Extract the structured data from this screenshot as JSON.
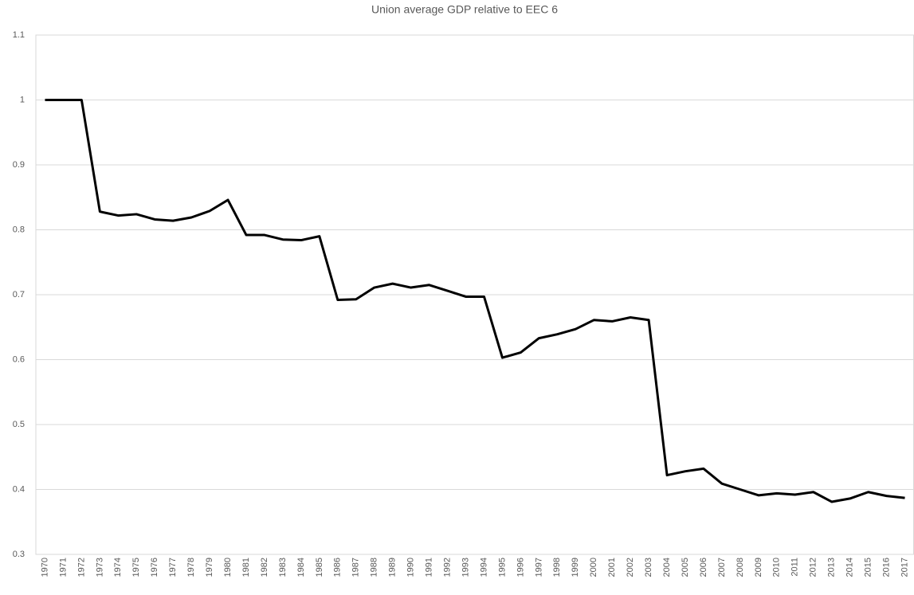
{
  "chart_data": {
    "type": "line",
    "title": "Union average GDP relative to EEC 6",
    "categories": [
      "1970",
      "1971",
      "1972",
      "1973",
      "1974",
      "1975",
      "1976",
      "1977",
      "1978",
      "1979",
      "1980",
      "1981",
      "1982",
      "1983",
      "1984",
      "1985",
      "1986",
      "1987",
      "1988",
      "1989",
      "1990",
      "1991",
      "1992",
      "1993",
      "1994",
      "1995",
      "1996",
      "1997",
      "1998",
      "1999",
      "2000",
      "2001",
      "2002",
      "2003",
      "2004",
      "2005",
      "2006",
      "2007",
      "2008",
      "2009",
      "2010",
      "2011",
      "2012",
      "2013",
      "2014",
      "2015",
      "2016",
      "2017"
    ],
    "values": [
      1.0,
      1.0,
      1.0,
      0.828,
      0.822,
      0.824,
      0.816,
      0.814,
      0.819,
      0.829,
      0.846,
      0.792,
      0.792,
      0.785,
      0.784,
      0.79,
      0.692,
      0.693,
      0.711,
      0.717,
      0.711,
      0.715,
      0.706,
      0.697,
      0.697,
      0.603,
      0.611,
      0.633,
      0.639,
      0.647,
      0.661,
      0.659,
      0.665,
      0.661,
      0.422,
      0.428,
      0.432,
      0.409,
      0.4,
      0.391,
      0.394,
      0.392,
      0.396,
      0.381,
      0.386,
      0.396,
      0.39,
      0.387
    ],
    "color": "#000000",
    "ylim": [
      0.3,
      1.1
    ],
    "yticks": [
      0.3,
      0.4,
      0.5,
      0.6,
      0.7,
      0.8,
      0.9,
      1,
      1.1
    ],
    "grid": true
  }
}
